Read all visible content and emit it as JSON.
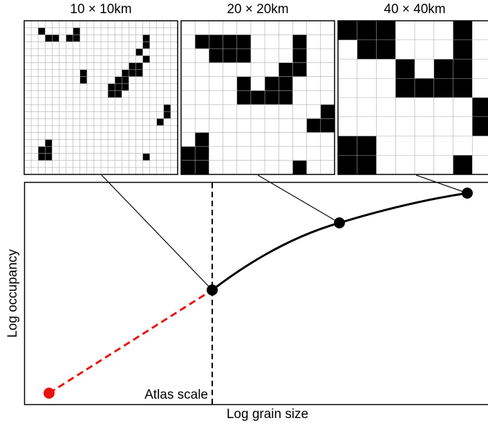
{
  "panels": [
    {
      "title": "10 × 10km"
    },
    {
      "title": "20 × 20km"
    },
    {
      "title": "40 × 40km"
    }
  ],
  "plot": {
    "y_label": "Log occupancy",
    "x_label": "Log grain size",
    "annotation": "Atlas scale"
  }
}
